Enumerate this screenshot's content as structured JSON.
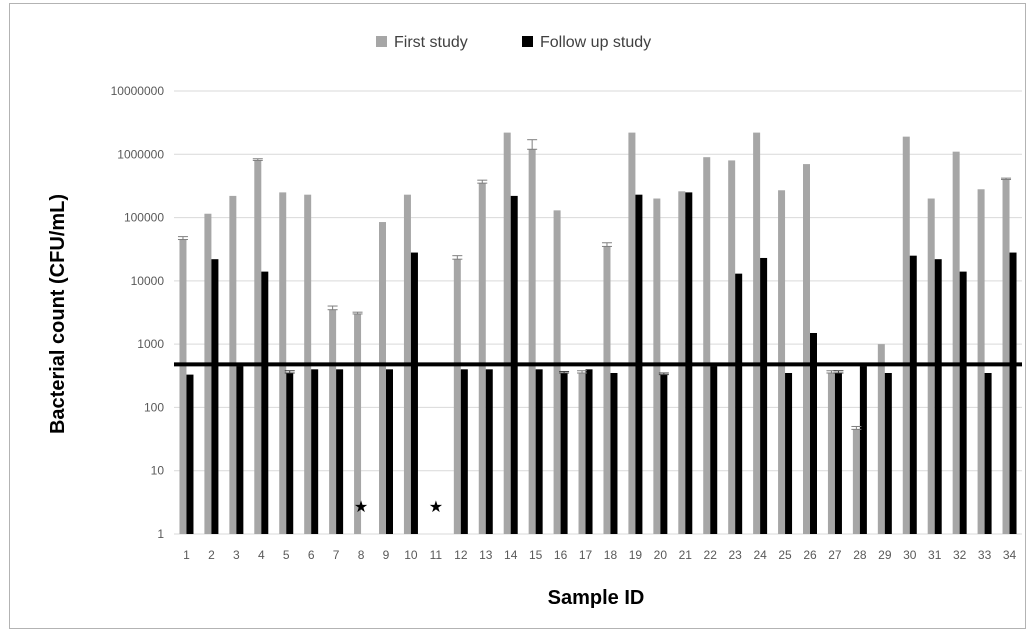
{
  "chart_data": {
    "type": "bar",
    "title": "",
    "xlabel": "Sample ID",
    "ylabel": "Bacterial count (CFU/mL)",
    "yscale": "log",
    "ylim": [
      1,
      10000000
    ],
    "yticks": [
      "1",
      "10",
      "100",
      "1000",
      "10000",
      "100000",
      "1000000",
      "10000000"
    ],
    "grid": "horizontal",
    "legend_position": "top-center",
    "categories": [
      "1",
      "2",
      "3",
      "4",
      "5",
      "6",
      "7",
      "8",
      "9",
      "10",
      "11",
      "12",
      "13",
      "14",
      "15",
      "16",
      "17",
      "18",
      "19",
      "20",
      "21",
      "22",
      "23",
      "24",
      "25",
      "26",
      "27",
      "28",
      "29",
      "30",
      "31",
      "32",
      "33",
      "34"
    ],
    "series": [
      {
        "name": "First study",
        "color": "#a6a6a6",
        "values": [
          45000,
          115000,
          220000,
          800000,
          250000,
          230000,
          3500,
          3000,
          85000,
          230000,
          null,
          22000,
          350000,
          2200000,
          1200000,
          130000,
          350,
          35000,
          2200000,
          200000,
          260000,
          900000,
          800000,
          2200000,
          270000,
          700000,
          350,
          45,
          1000,
          1900000,
          200000,
          1100000,
          280000,
          400000
        ],
        "errors": [
          5000,
          0,
          0,
          50000,
          0,
          0,
          500,
          200,
          0,
          0,
          null,
          3000,
          40000,
          0,
          500000,
          0,
          30,
          5000,
          0,
          0,
          0,
          0,
          0,
          0,
          0,
          0,
          30,
          5,
          0,
          0,
          0,
          0,
          0,
          20000
        ]
      },
      {
        "name": "Follow up study",
        "color": "#000000",
        "values": [
          330,
          22000,
          450,
          14000,
          350,
          400,
          400,
          null,
          400,
          28000,
          null,
          400,
          400,
          220000,
          400,
          350,
          400,
          350,
          230000,
          330,
          250000,
          450,
          13000,
          23000,
          350,
          1500,
          350,
          450,
          350,
          25000,
          22000,
          14000,
          350,
          28000
        ],
        "errors": [
          0,
          0,
          0,
          0,
          30,
          0,
          0,
          null,
          0,
          0,
          null,
          0,
          0,
          0,
          0,
          20,
          0,
          0,
          0,
          20,
          0,
          0,
          0,
          0,
          0,
          0,
          30,
          0,
          0,
          0,
          0,
          0,
          0,
          0
        ]
      }
    ],
    "reference_line": {
      "value": 480
    },
    "annotations": [
      {
        "category": "8",
        "symbol": "★"
      },
      {
        "category": "11",
        "symbol": "★"
      }
    ]
  }
}
